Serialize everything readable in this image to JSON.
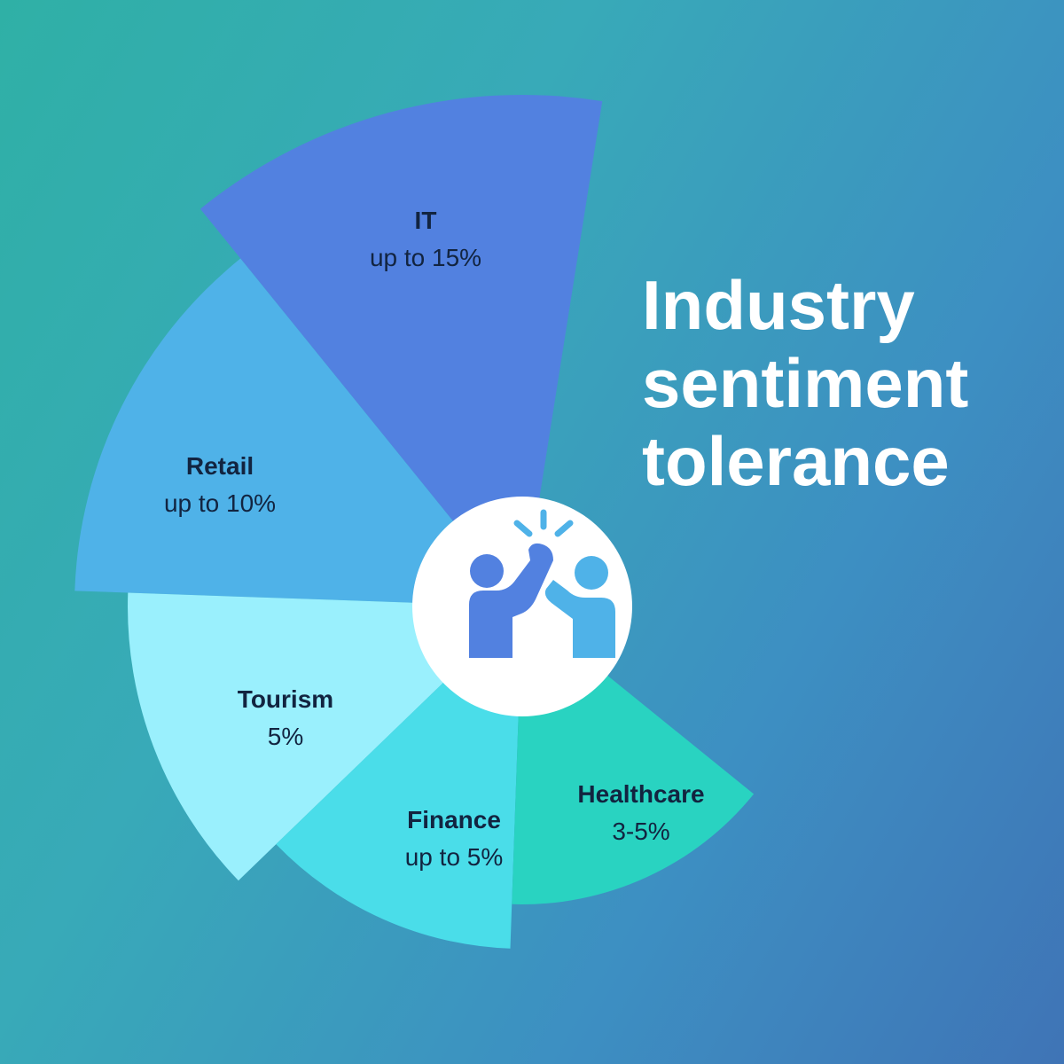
{
  "title_lines": [
    "Industry",
    "sentiment",
    "tolerance"
  ],
  "center_icon": "high-five-icon",
  "colors": {
    "it": "#5281e0",
    "retail": "#4fb2e8",
    "tourism": "#9af0fd",
    "finance": "#4adde9",
    "healthcare": "#29d3c1",
    "label_text": "#122440",
    "title_text": "#ffffff",
    "center_circle": "#ffffff"
  },
  "chart_data": {
    "type": "pie",
    "title": "Industry sentiment tolerance",
    "slices": [
      {
        "key": "it",
        "name": "IT",
        "value_label": "up to 15%",
        "value": 15
      },
      {
        "key": "retail",
        "name": "Retail",
        "value_label": "up to 10%",
        "value": 10
      },
      {
        "key": "tourism",
        "name": "Tourism",
        "value_label": "5%",
        "value": 5
      },
      {
        "key": "finance",
        "name": "Finance",
        "value_label": "up to 5%",
        "value": 5
      },
      {
        "key": "healthcare",
        "name": "Healthcare",
        "value_label": "3-5%",
        "value": 4
      }
    ],
    "legend": "none",
    "grid": false
  }
}
